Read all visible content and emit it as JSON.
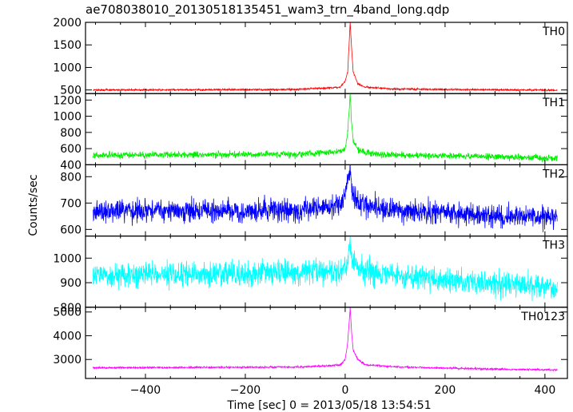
{
  "title": "ae708038010_20130518135451_wam3_trn_4band_long.qdp",
  "ylabel": "Counts/sec",
  "xlabel": "Time [sec] 0 = 2013/05/18 13:54:51",
  "chart_data": {
    "type": "line",
    "title": "ae708038010_20130518135451_wam3_trn_4band_long.qdp",
    "xlabel": "Time [sec] 0 = 2013/05/18 13:54:51",
    "ylabel": "Counts/sec",
    "xlim": [
      -520,
      445
    ],
    "x_ticks": [
      -400,
      -200,
      0,
      200,
      400
    ],
    "grid": false,
    "panels": [
      {
        "name": "TH0",
        "color": "#ff0000",
        "ylim": [
          420,
          2000
        ],
        "y_ticks": [
          500,
          1000,
          1500,
          2000
        ],
        "baseline": 500,
        "noise": 14,
        "drift": 0,
        "points": [
          [
            -505,
            500
          ],
          [
            -100,
            510
          ],
          [
            -10,
            560
          ],
          [
            0,
            700
          ],
          [
            5,
            900
          ],
          [
            10,
            2000
          ],
          [
            13,
            1400
          ],
          [
            16,
            900
          ],
          [
            25,
            640
          ],
          [
            40,
            560
          ],
          [
            100,
            520
          ],
          [
            300,
            505
          ],
          [
            425,
            495
          ]
        ]
      },
      {
        "name": "TH1",
        "color": "#00ee00",
        "ylim": [
          400,
          1280
        ],
        "y_ticks": [
          400,
          600,
          800,
          1000,
          1200
        ],
        "baseline": 520,
        "noise": 28,
        "drift": -50,
        "points": [
          [
            -505,
            520
          ],
          [
            -100,
            530
          ],
          [
            -10,
            560
          ],
          [
            0,
            600
          ],
          [
            5,
            780
          ],
          [
            10,
            1270
          ],
          [
            13,
            900
          ],
          [
            16,
            700
          ],
          [
            25,
            600
          ],
          [
            40,
            550
          ],
          [
            100,
            520
          ],
          [
            300,
            500
          ],
          [
            425,
            475
          ]
        ]
      },
      {
        "name": "TH2",
        "color": "#0000ff",
        "ylim": [
          575,
          845
        ],
        "y_ticks": [
          600,
          700,
          800
        ],
        "baseline": 670,
        "noise": 30,
        "drift": -25,
        "points": [
          [
            -505,
            670
          ],
          [
            -100,
            672
          ],
          [
            -10,
            690
          ],
          [
            0,
            730
          ],
          [
            10,
            840
          ],
          [
            13,
            760
          ],
          [
            20,
            710
          ],
          [
            40,
            690
          ],
          [
            100,
            670
          ],
          [
            300,
            650
          ],
          [
            425,
            645
          ]
        ]
      },
      {
        "name": "TH3",
        "color": "#00ffff",
        "ylim": [
          800,
          1090
        ],
        "y_ticks": [
          800,
          900,
          1000
        ],
        "baseline": 930,
        "noise": 35,
        "drift": -55,
        "points": [
          [
            -505,
            930
          ],
          [
            -200,
            940
          ],
          [
            -10,
            950
          ],
          [
            5,
            990
          ],
          [
            10,
            1070
          ],
          [
            14,
            990
          ],
          [
            30,
            950
          ],
          [
            100,
            930
          ],
          [
            300,
            895
          ],
          [
            425,
            880
          ]
        ]
      },
      {
        "name": "TH0123",
        "color": "#ff00ff",
        "ylim": [
          2200,
          5200
        ],
        "y_ticks": [
          3000,
          4000,
          5000
        ],
        "baseline": 2650,
        "noise": 28,
        "drift": -90,
        "points": [
          [
            -505,
            2650
          ],
          [
            -100,
            2680
          ],
          [
            -10,
            2760
          ],
          [
            0,
            3000
          ],
          [
            5,
            3700
          ],
          [
            10,
            5150
          ],
          [
            13,
            4100
          ],
          [
            16,
            3400
          ],
          [
            25,
            3000
          ],
          [
            40,
            2780
          ],
          [
            100,
            2690
          ],
          [
            300,
            2590
          ],
          [
            425,
            2560
          ]
        ]
      }
    ]
  }
}
